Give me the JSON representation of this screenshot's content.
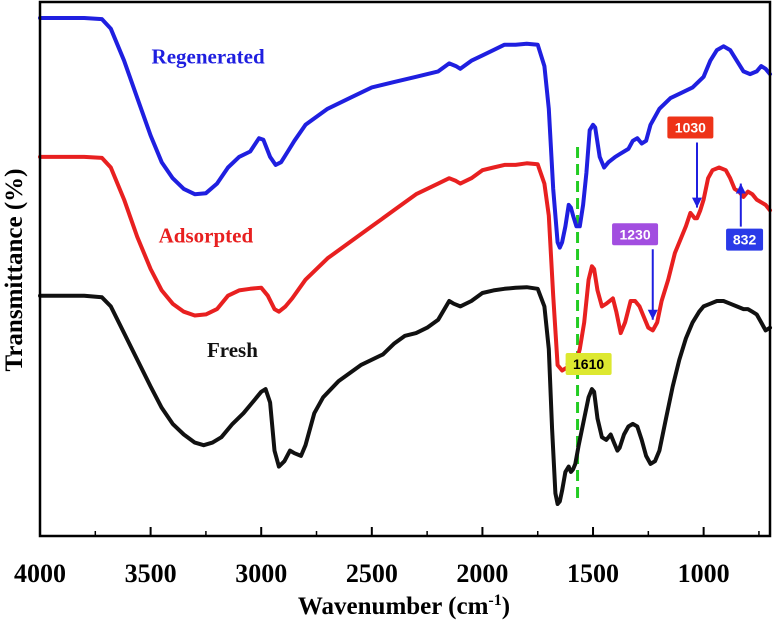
{
  "chart_data": {
    "type": "line",
    "xlabel": "Wavenumber (cm",
    "xlabel_sup": "-1",
    "xlabel_end": ")",
    "ylabel": "Transmittance (%)",
    "xlim": [
      4000,
      700
    ],
    "x_reversed": true,
    "ylim": [
      0,
      100
    ],
    "y_tick_labels": false,
    "grid": false,
    "x_ticks": [
      "4000",
      "3500",
      "3000",
      "2500",
      "2000",
      "1500",
      "1000"
    ],
    "x_tick_values": [
      4000,
      3500,
      3000,
      2500,
      2000,
      1500,
      1000
    ],
    "reference_line": {
      "x": 1570,
      "color": "#22cc22",
      "style": "dashed"
    },
    "series": [
      {
        "name": "Regenerated",
        "color": "#1f1fe0",
        "points": [
          [
            4000,
            97
          ],
          [
            3900,
            97
          ],
          [
            3800,
            97
          ],
          [
            3720,
            96.8
          ],
          [
            3680,
            95
          ],
          [
            3620,
            89
          ],
          [
            3560,
            82
          ],
          [
            3500,
            75
          ],
          [
            3450,
            70
          ],
          [
            3400,
            67
          ],
          [
            3350,
            65
          ],
          [
            3300,
            64
          ],
          [
            3250,
            64.2
          ],
          [
            3200,
            66
          ],
          [
            3150,
            69
          ],
          [
            3100,
            71
          ],
          [
            3050,
            72
          ],
          [
            3010,
            74.5
          ],
          [
            2990,
            74.2
          ],
          [
            2960,
            71
          ],
          [
            2935,
            69.5
          ],
          [
            2910,
            70
          ],
          [
            2880,
            72
          ],
          [
            2850,
            74
          ],
          [
            2800,
            77
          ],
          [
            2700,
            80
          ],
          [
            2600,
            82
          ],
          [
            2500,
            84
          ],
          [
            2400,
            85
          ],
          [
            2300,
            86
          ],
          [
            2200,
            87
          ],
          [
            2150,
            88.5
          ],
          [
            2120,
            88
          ],
          [
            2100,
            87.5
          ],
          [
            2050,
            89
          ],
          [
            2000,
            90
          ],
          [
            1950,
            91
          ],
          [
            1900,
            92
          ],
          [
            1850,
            92
          ],
          [
            1800,
            92.2
          ],
          [
            1750,
            92
          ],
          [
            1720,
            88
          ],
          [
            1700,
            80
          ],
          [
            1680,
            65
          ],
          [
            1660,
            55
          ],
          [
            1650,
            54
          ],
          [
            1640,
            55
          ],
          [
            1625,
            58
          ],
          [
            1610,
            62
          ],
          [
            1600,
            61.5
          ],
          [
            1590,
            60
          ],
          [
            1575,
            58
          ],
          [
            1560,
            58
          ],
          [
            1545,
            62
          ],
          [
            1530,
            68
          ],
          [
            1515,
            76
          ],
          [
            1500,
            77
          ],
          [
            1490,
            76.5
          ],
          [
            1470,
            71
          ],
          [
            1450,
            69
          ],
          [
            1430,
            70
          ],
          [
            1400,
            71
          ],
          [
            1380,
            71.5
          ],
          [
            1340,
            72.5
          ],
          [
            1320,
            74
          ],
          [
            1300,
            74.5
          ],
          [
            1280,
            73.5
          ],
          [
            1260,
            74
          ],
          [
            1240,
            77
          ],
          [
            1200,
            80
          ],
          [
            1150,
            82
          ],
          [
            1100,
            83
          ],
          [
            1050,
            84
          ],
          [
            1000,
            86
          ],
          [
            970,
            89
          ],
          [
            940,
            91
          ],
          [
            910,
            91.7
          ],
          [
            880,
            91
          ],
          [
            850,
            89
          ],
          [
            820,
            87
          ],
          [
            790,
            86.5
          ],
          [
            760,
            87
          ],
          [
            740,
            88
          ],
          [
            720,
            87.5
          ],
          [
            700,
            86.5
          ]
        ]
      },
      {
        "name": "Adsorpted",
        "color": "#e82020",
        "points": [
          [
            4000,
            71
          ],
          [
            3900,
            71
          ],
          [
            3800,
            71
          ],
          [
            3720,
            70.8
          ],
          [
            3680,
            69
          ],
          [
            3620,
            63
          ],
          [
            3560,
            56
          ],
          [
            3500,
            50
          ],
          [
            3450,
            46
          ],
          [
            3400,
            43.5
          ],
          [
            3350,
            42
          ],
          [
            3300,
            41.3
          ],
          [
            3250,
            41.5
          ],
          [
            3200,
            42.5
          ],
          [
            3150,
            45
          ],
          [
            3100,
            46
          ],
          [
            3050,
            46.3
          ],
          [
            3000,
            46.5
          ],
          [
            2970,
            45
          ],
          [
            2940,
            42.5
          ],
          [
            2920,
            42
          ],
          [
            2890,
            43
          ],
          [
            2860,
            44.5
          ],
          [
            2800,
            48
          ],
          [
            2700,
            52
          ],
          [
            2600,
            55
          ],
          [
            2500,
            58
          ],
          [
            2400,
            61
          ],
          [
            2300,
            64
          ],
          [
            2200,
            66
          ],
          [
            2150,
            67
          ],
          [
            2120,
            66.5
          ],
          [
            2100,
            66
          ],
          [
            2050,
            67
          ],
          [
            2000,
            68.5
          ],
          [
            1950,
            69
          ],
          [
            1900,
            69.5
          ],
          [
            1850,
            69.5
          ],
          [
            1800,
            69.8
          ],
          [
            1750,
            69.6
          ],
          [
            1720,
            66
          ],
          [
            1700,
            60
          ],
          [
            1680,
            45
          ],
          [
            1660,
            32
          ],
          [
            1640,
            31
          ],
          [
            1620,
            31.5
          ],
          [
            1600,
            31.5
          ],
          [
            1580,
            32
          ],
          [
            1560,
            35
          ],
          [
            1540,
            40
          ],
          [
            1520,
            48
          ],
          [
            1505,
            50.5
          ],
          [
            1495,
            50
          ],
          [
            1480,
            46
          ],
          [
            1460,
            43
          ],
          [
            1440,
            43.5
          ],
          [
            1410,
            44.5
          ],
          [
            1395,
            42
          ],
          [
            1375,
            38
          ],
          [
            1355,
            40
          ],
          [
            1330,
            44
          ],
          [
            1310,
            44
          ],
          [
            1290,
            43
          ],
          [
            1270,
            41
          ],
          [
            1250,
            39
          ],
          [
            1230,
            38.5
          ],
          [
            1210,
            40
          ],
          [
            1190,
            44
          ],
          [
            1160,
            48
          ],
          [
            1130,
            53
          ],
          [
            1100,
            56
          ],
          [
            1080,
            58
          ],
          [
            1060,
            60.5
          ],
          [
            1040,
            59.5
          ],
          [
            1030,
            59.5
          ],
          [
            1015,
            61
          ],
          [
            1000,
            63
          ],
          [
            980,
            67
          ],
          [
            960,
            68.5
          ],
          [
            930,
            69
          ],
          [
            900,
            68.5
          ],
          [
            880,
            67
          ],
          [
            860,
            65
          ],
          [
            840,
            64.5
          ],
          [
            820,
            63.5
          ],
          [
            800,
            64.5
          ],
          [
            780,
            64
          ],
          [
            760,
            63
          ],
          [
            740,
            62.5
          ],
          [
            720,
            62
          ],
          [
            700,
            61
          ]
        ]
      },
      {
        "name": "Fresh",
        "color": "#111111",
        "points": [
          [
            4000,
            45
          ],
          [
            3900,
            45
          ],
          [
            3800,
            45
          ],
          [
            3720,
            44.7
          ],
          [
            3680,
            43
          ],
          [
            3620,
            38
          ],
          [
            3560,
            33
          ],
          [
            3500,
            28
          ],
          [
            3450,
            24
          ],
          [
            3400,
            21
          ],
          [
            3350,
            19
          ],
          [
            3300,
            17.5
          ],
          [
            3260,
            17
          ],
          [
            3220,
            17.5
          ],
          [
            3180,
            18.5
          ],
          [
            3130,
            21
          ],
          [
            3080,
            23
          ],
          [
            3040,
            25
          ],
          [
            3000,
            27
          ],
          [
            2980,
            27.5
          ],
          [
            2960,
            25
          ],
          [
            2940,
            16
          ],
          [
            2920,
            13
          ],
          [
            2895,
            14
          ],
          [
            2870,
            16
          ],
          [
            2850,
            15.5
          ],
          [
            2820,
            15
          ],
          [
            2800,
            17
          ],
          [
            2760,
            23
          ],
          [
            2720,
            26
          ],
          [
            2650,
            29
          ],
          [
            2600,
            30.5
          ],
          [
            2550,
            32
          ],
          [
            2450,
            34
          ],
          [
            2400,
            36
          ],
          [
            2350,
            37.5
          ],
          [
            2300,
            38
          ],
          [
            2250,
            39
          ],
          [
            2200,
            40.5
          ],
          [
            2150,
            44
          ],
          [
            2130,
            43.5
          ],
          [
            2100,
            43
          ],
          [
            2050,
            44
          ],
          [
            2000,
            45.5
          ],
          [
            1950,
            46
          ],
          [
            1900,
            46.3
          ],
          [
            1850,
            46.5
          ],
          [
            1800,
            46.6
          ],
          [
            1750,
            46.3
          ],
          [
            1720,
            43
          ],
          [
            1700,
            35
          ],
          [
            1685,
            20
          ],
          [
            1670,
            8
          ],
          [
            1660,
            6
          ],
          [
            1650,
            6.5
          ],
          [
            1640,
            8.5
          ],
          [
            1625,
            12
          ],
          [
            1610,
            13
          ],
          [
            1600,
            12
          ],
          [
            1590,
            12.5
          ],
          [
            1580,
            13.5
          ],
          [
            1565,
            17
          ],
          [
            1540,
            22
          ],
          [
            1520,
            26
          ],
          [
            1505,
            27.5
          ],
          [
            1495,
            27
          ],
          [
            1480,
            22
          ],
          [
            1460,
            18.5
          ],
          [
            1440,
            18
          ],
          [
            1420,
            19
          ],
          [
            1405,
            17.5
          ],
          [
            1390,
            16
          ],
          [
            1380,
            16.5
          ],
          [
            1360,
            19
          ],
          [
            1340,
            20.5
          ],
          [
            1320,
            21
          ],
          [
            1300,
            20.5
          ],
          [
            1280,
            18
          ],
          [
            1260,
            15
          ],
          [
            1240,
            13.5
          ],
          [
            1220,
            14
          ],
          [
            1200,
            16
          ],
          [
            1170,
            22
          ],
          [
            1140,
            28
          ],
          [
            1110,
            33
          ],
          [
            1080,
            37
          ],
          [
            1050,
            40
          ],
          [
            1020,
            42
          ],
          [
            1000,
            43
          ],
          [
            970,
            43.5
          ],
          [
            940,
            44
          ],
          [
            910,
            44
          ],
          [
            880,
            43.5
          ],
          [
            850,
            43
          ],
          [
            820,
            42.5
          ],
          [
            800,
            42.5
          ],
          [
            780,
            42
          ],
          [
            760,
            41.5
          ],
          [
            740,
            40
          ],
          [
            720,
            38.5
          ],
          [
            700,
            39
          ]
        ]
      }
    ],
    "series_labels": [
      {
        "text": "Regenerated",
        "color": "#1f1fe0",
        "x": 3240,
        "y": 88.5
      },
      {
        "text": "Adsorpted",
        "color": "#e82020",
        "x": 3250,
        "y": 55
      },
      {
        "text": "Fresh",
        "color": "#111111",
        "x": 3130,
        "y": 33.5
      }
    ],
    "annotations": [
      {
        "text": "1610",
        "bg": "#dde830",
        "fg": "#000000",
        "arrow_color": "#1f1fe0",
        "box_x": 1520,
        "box_y": 32.2,
        "tip_x": 1575,
        "tip_y": 32.2,
        "arrow_dir": "left"
      },
      {
        "text": "1230",
        "bg": "#a24ee0",
        "fg": "#ffffff",
        "arrow_color": "#1f1fe0",
        "box_x": 1310,
        "box_y": 56.5,
        "tip_x": 1230,
        "tip_y": 40.5,
        "arrow_dir": "down"
      },
      {
        "text": "1030",
        "bg": "#ee3318",
        "fg": "#ffffff",
        "arrow_color": "#1f1fe0",
        "box_x": 1060,
        "box_y": 76.5,
        "tip_x": 1030,
        "tip_y": 61.5,
        "arrow_dir": "down"
      },
      {
        "text": "832",
        "bg": "#2a3ae8",
        "fg": "#ffffff",
        "arrow_color": "#1f1fe0",
        "box_x": 815,
        "box_y": 55.5,
        "tip_x": 832,
        "tip_y": 66,
        "arrow_dir": "up"
      }
    ]
  }
}
